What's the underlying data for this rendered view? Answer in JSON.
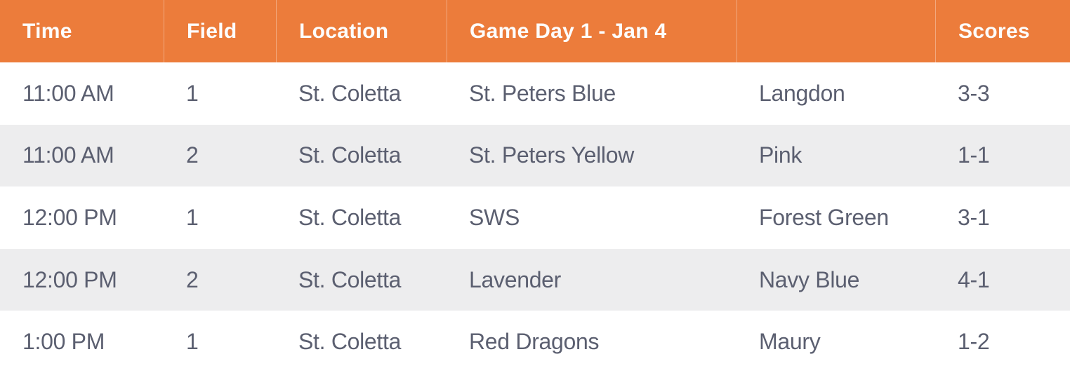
{
  "table": {
    "title": "Game Day 1 - Jan 4",
    "columns": [
      {
        "key": "time",
        "label": "Time"
      },
      {
        "key": "field",
        "label": "Field"
      },
      {
        "key": "location",
        "label": "Location"
      },
      {
        "key": "home",
        "label": "Game Day 1 - Jan 4"
      },
      {
        "key": "away",
        "label": ""
      },
      {
        "key": "scores",
        "label": "Scores"
      }
    ],
    "rows": [
      {
        "time": "11:00 AM",
        "field": "1",
        "location": "St. Coletta",
        "home": "St. Peters Blue",
        "away": "Langdon",
        "scores": "3-3"
      },
      {
        "time": "11:00 AM",
        "field": "2",
        "location": "St. Coletta",
        "home": "St. Peters Yellow",
        "away": "Pink",
        "scores": "1-1"
      },
      {
        "time": "12:00 PM",
        "field": "1",
        "location": "St. Coletta",
        "home": "SWS",
        "away": "Forest Green",
        "scores": "3-1"
      },
      {
        "time": "12:00 PM",
        "field": "2",
        "location": "St. Coletta",
        "home": "Lavender",
        "away": "Navy Blue",
        "scores": "4-1"
      },
      {
        "time": "1:00 PM",
        "field": "1",
        "location": "St. Coletta",
        "home": "Red Dragons",
        "away": "Maury",
        "scores": "1-2"
      }
    ]
  },
  "colors": {
    "header_bg": "#EC7C3B",
    "header_text": "#FFFFFF",
    "header_separator": "rgba(255,255,255,0.35)",
    "row_bg": "#FFFFFF",
    "row_alt_bg": "#EDEDEE",
    "body_text": "#5B5F70"
  }
}
